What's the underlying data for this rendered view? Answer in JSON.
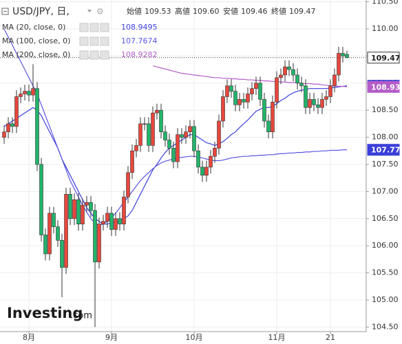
{
  "header": {
    "symbol": "USD/JPY, 日,",
    "ohlc": [
      {
        "label": "始値",
        "value": "109.53"
      },
      {
        "label": "高値",
        "value": "109.60"
      },
      {
        "label": "安値",
        "value": "109.46"
      },
      {
        "label": "終値",
        "value": "109.47"
      }
    ],
    "logo": "Investing",
    "logo_suffix": ".com"
  },
  "chart_data": {
    "type": "candlestick",
    "up_color": "#e8473c",
    "down_color": "#22b46a",
    "candles": {
      "open": [
        108.0,
        108.1,
        108.25,
        108.2,
        108.75,
        108.8,
        108.85,
        108.78,
        108.9,
        107.5,
        106.2,
        105.85,
        106.6,
        106.35,
        106.1,
        105.6,
        106.95,
        106.5,
        106.85,
        106.4,
        106.75,
        106.8,
        106.65,
        105.7,
        106.4,
        106.45,
        106.6,
        106.3,
        106.5,
        106.4,
        106.9,
        107.35,
        107.75,
        107.85,
        108.25,
        108.25,
        107.85,
        108.45,
        108.5,
        108.1,
        107.95,
        107.8,
        107.55,
        108.05,
        108.0,
        108.1,
        108.2,
        107.75,
        107.45,
        107.3,
        107.45,
        107.65,
        107.8,
        108.3,
        108.75,
        108.95,
        108.85,
        108.6,
        108.7,
        108.65,
        108.8,
        108.9,
        109.0,
        108.7,
        108.3,
        108.1,
        108.65,
        109.1,
        109.15,
        109.3,
        109.25,
        109.15,
        109.0,
        108.95,
        108.55,
        108.7,
        108.6,
        108.55,
        108.7,
        108.75,
        108.95,
        109.15,
        109.55,
        109.53
      ],
      "high": [
        108.22,
        108.37,
        108.37,
        108.87,
        108.92,
        108.97,
        108.97,
        109.35,
        109.02,
        107.62,
        106.32,
        106.72,
        106.72,
        106.47,
        106.22,
        107.07,
        107.07,
        106.97,
        106.97,
        106.87,
        106.92,
        106.92,
        106.77,
        106.52,
        106.57,
        106.72,
        106.72,
        106.62,
        106.62,
        107.02,
        107.47,
        107.87,
        107.97,
        108.37,
        108.37,
        108.37,
        108.57,
        108.62,
        108.62,
        108.22,
        108.07,
        107.92,
        108.17,
        108.17,
        108.22,
        108.32,
        108.32,
        107.87,
        107.57,
        107.57,
        107.77,
        107.92,
        108.42,
        108.87,
        109.07,
        109.07,
        108.97,
        108.82,
        108.82,
        108.92,
        109.02,
        109.12,
        109.12,
        108.82,
        108.42,
        108.77,
        109.22,
        109.27,
        109.42,
        109.42,
        109.37,
        109.27,
        109.12,
        109.07,
        108.82,
        108.82,
        108.72,
        108.82,
        108.87,
        109.07,
        109.27,
        109.67,
        109.67,
        109.6
      ],
      "low": [
        107.88,
        107.98,
        108.08,
        108.08,
        108.63,
        108.68,
        108.66,
        108.66,
        107.38,
        106.08,
        105.73,
        105.73,
        106.23,
        105.98,
        105.05,
        105.48,
        106.38,
        106.38,
        106.28,
        106.28,
        106.63,
        106.53,
        104.5,
        105.58,
        106.28,
        106.33,
        106.18,
        106.18,
        106.28,
        106.28,
        106.78,
        107.23,
        107.63,
        107.73,
        108.13,
        107.73,
        107.73,
        108.33,
        107.98,
        107.83,
        107.68,
        107.43,
        107.43,
        107.88,
        107.88,
        107.98,
        107.63,
        107.33,
        107.18,
        107.18,
        107.33,
        107.53,
        107.68,
        108.18,
        108.63,
        108.73,
        108.48,
        108.48,
        108.53,
        108.53,
        108.68,
        108.78,
        108.58,
        108.18,
        107.98,
        107.98,
        108.53,
        108.98,
        109.03,
        109.13,
        109.03,
        108.88,
        108.83,
        108.43,
        108.43,
        108.48,
        108.43,
        108.43,
        108.58,
        108.63,
        108.83,
        109.03,
        109.38,
        109.46
      ],
      "close": [
        108.1,
        108.25,
        108.2,
        108.75,
        108.8,
        108.85,
        108.78,
        108.9,
        107.5,
        106.2,
        105.85,
        106.6,
        106.35,
        106.1,
        105.6,
        106.95,
        106.5,
        106.85,
        106.4,
        106.75,
        106.8,
        106.65,
        105.7,
        106.4,
        106.45,
        106.6,
        106.3,
        106.5,
        106.4,
        106.9,
        107.35,
        107.75,
        107.85,
        108.25,
        108.25,
        107.85,
        108.45,
        108.5,
        108.1,
        107.95,
        107.8,
        107.55,
        108.05,
        108.0,
        108.1,
        108.2,
        107.75,
        107.45,
        107.3,
        107.45,
        107.65,
        107.8,
        108.3,
        108.75,
        108.95,
        108.85,
        108.6,
        108.7,
        108.65,
        108.8,
        108.9,
        109.0,
        108.7,
        108.3,
        108.1,
        108.65,
        109.1,
        109.15,
        109.3,
        109.25,
        109.15,
        109.0,
        108.95,
        108.55,
        108.7,
        108.6,
        108.55,
        108.7,
        108.75,
        108.95,
        109.15,
        109.55,
        109.5,
        109.47
      ]
    },
    "series": [
      {
        "name": "MA (20, close, 0)",
        "legend_value": "108.9495",
        "color": "#3a3fd9",
        "values": [
          108.2,
          108.25,
          108.3,
          108.35,
          108.4,
          108.45,
          108.5,
          108.55,
          108.5,
          108.4,
          108.25,
          108.1,
          107.95,
          107.8,
          107.6,
          107.45,
          107.3,
          107.15,
          107.0,
          106.85,
          106.7,
          106.6,
          106.5,
          106.45,
          106.4,
          106.4,
          106.42,
          106.44,
          106.46,
          106.5,
          106.55,
          106.65,
          106.8,
          106.95,
          107.1,
          107.25,
          107.4,
          107.5,
          107.62,
          107.72,
          107.8,
          107.85,
          107.9,
          107.95,
          108.0,
          108.05,
          108.05,
          108.0,
          107.95,
          107.9,
          107.88,
          107.85,
          107.88,
          107.92,
          107.98,
          108.05,
          108.1,
          108.18,
          108.25,
          108.32,
          108.4,
          108.48,
          108.52,
          108.55,
          108.55,
          108.57,
          108.62,
          108.68,
          108.72,
          108.78,
          108.82,
          108.85,
          108.87,
          108.88,
          108.9,
          108.9,
          108.9,
          108.9,
          108.9,
          108.91,
          108.92,
          108.93,
          108.94,
          108.95
        ]
      },
      {
        "name": "MA (100, close, 0)",
        "legend_value": "107.7674",
        "color": "#5b55e0",
        "values": [
          110.0,
          109.85,
          109.7,
          109.55,
          109.4,
          109.25,
          109.1,
          108.95,
          108.8,
          108.6,
          108.4,
          108.2,
          108.0,
          107.8,
          107.6,
          107.4,
          107.2,
          107.05,
          106.9,
          106.75,
          106.62,
          106.5,
          106.42,
          106.38,
          106.4,
          106.45,
          106.52,
          106.6,
          106.7,
          106.8,
          106.9,
          107.0,
          107.1,
          107.2,
          107.28,
          107.35,
          107.42,
          107.48,
          107.53,
          107.56,
          107.58,
          107.6,
          107.62,
          107.63,
          107.64,
          107.65,
          107.65,
          107.64,
          107.62,
          107.6,
          107.58,
          107.57,
          107.57,
          107.58,
          107.6,
          107.62,
          107.63,
          107.64,
          107.65,
          107.65,
          107.66,
          107.66,
          107.67,
          107.67,
          107.68,
          107.68,
          107.69,
          107.7,
          107.7,
          107.71,
          107.71,
          107.72,
          107.72,
          107.73,
          107.73,
          107.74,
          107.74,
          107.75,
          107.75,
          107.76,
          107.76,
          107.76,
          107.77,
          107.77
        ]
      },
      {
        "name": "MA (200, close, 0)",
        "legend_value": "108.9282",
        "color": "#b45cc8",
        "values": [
          null,
          null,
          null,
          null,
          null,
          null,
          null,
          null,
          null,
          null,
          null,
          null,
          null,
          null,
          null,
          null,
          null,
          null,
          null,
          null,
          null,
          null,
          null,
          null,
          null,
          null,
          null,
          null,
          null,
          null,
          null,
          null,
          null,
          null,
          null,
          null,
          109.32,
          109.3,
          109.28,
          109.26,
          109.24,
          109.22,
          109.2,
          109.18,
          109.17,
          109.16,
          109.15,
          109.14,
          109.13,
          109.12,
          109.11,
          109.1,
          109.1,
          109.09,
          109.09,
          109.08,
          109.08,
          109.07,
          109.07,
          109.06,
          109.06,
          109.05,
          109.05,
          109.04,
          109.04,
          109.03,
          109.03,
          109.02,
          109.02,
          109.01,
          109.01,
          109.0,
          109.0,
          108.99,
          108.99,
          108.98,
          108.98,
          108.97,
          108.96,
          108.95,
          108.95,
          108.94,
          108.94,
          108.93
        ]
      }
    ],
    "price_markers": [
      {
        "value": 109.47,
        "color": "#ffffff",
        "text_color": "#222222",
        "dotted": true
      },
      {
        "value": 108.95,
        "color": "#3a3fd9",
        "text_color": "#ffffff"
      },
      {
        "value": 108.93,
        "color": "#b45cc8",
        "text_color": "#ffffff"
      },
      {
        "value": 107.77,
        "color": "#3a3fd9",
        "text_color": "#ffffff"
      }
    ],
    "ylim": [
      104.416,
      110.533
    ],
    "yticks": [
      {
        "value": 104.5,
        "label": "104.50"
      },
      {
        "value": 105,
        "label": "105.00"
      },
      {
        "value": 105.5,
        "label": "105.50"
      },
      {
        "value": 106,
        "label": "106.00"
      },
      {
        "value": 106.5,
        "label": "106.50"
      },
      {
        "value": 107,
        "label": "107.00"
      },
      {
        "value": 107.5,
        "label": "107.50"
      },
      {
        "value": 108,
        "label": "108.00"
      },
      {
        "value": 108.5,
        "label": "108.50"
      },
      {
        "value": 109,
        "label": "109.00"
      },
      {
        "value": 109.5,
        "label": "109.50"
      },
      {
        "value": 110,
        "label": "110.00"
      },
      {
        "value": 110.5,
        "label": "110.50"
      }
    ],
    "xticks": [
      {
        "value": 6,
        "label": "8月"
      },
      {
        "value": 26,
        "label": "9月"
      },
      {
        "value": 46,
        "label": "10月"
      },
      {
        "value": 66,
        "label": "11月"
      },
      {
        "value": 79,
        "label": "21"
      }
    ],
    "grid": true
  }
}
